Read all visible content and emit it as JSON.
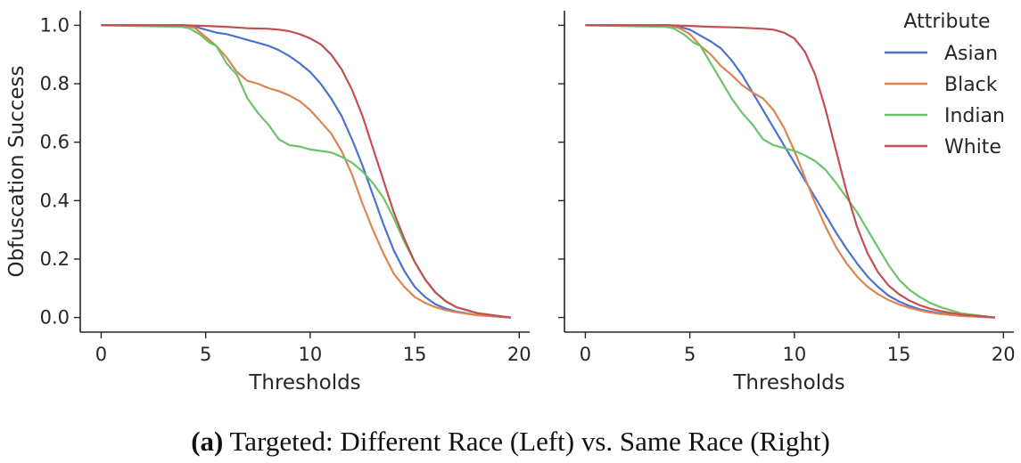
{
  "caption": {
    "label": "(a)",
    "text": " Targeted: Different Race (Left) vs. Same Race (Right)"
  },
  "legend": {
    "title": "Attribute",
    "placement": "top-right of right panel"
  },
  "chart_data": [
    {
      "type": "line",
      "panel": "left",
      "title": "",
      "xlabel": "Thresholds",
      "ylabel": "Obfuscation Success",
      "xlim": [
        -1,
        20.5
      ],
      "ylim": [
        -0.05,
        1.05
      ],
      "xticks": [
        0,
        5,
        10,
        15,
        20
      ],
      "yticks": [
        "0.0",
        "0.2",
        "0.4",
        "0.6",
        "0.8",
        "1.0"
      ],
      "grid": false,
      "series": [
        {
          "name": "Asian",
          "color": "#4c72d0",
          "x": [
            0,
            4,
            4.5,
            5,
            5.5,
            6,
            6.5,
            7,
            7.5,
            8,
            8.5,
            9,
            9.5,
            10,
            10.5,
            11,
            11.5,
            12,
            12.5,
            13,
            13.5,
            14,
            14.5,
            15,
            15.5,
            16,
            16.5,
            17,
            18,
            19,
            19.6
          ],
          "y": [
            1.0,
            1.0,
            0.995,
            0.985,
            0.975,
            0.97,
            0.96,
            0.95,
            0.94,
            0.93,
            0.915,
            0.895,
            0.87,
            0.84,
            0.8,
            0.75,
            0.69,
            0.61,
            0.52,
            0.42,
            0.32,
            0.23,
            0.16,
            0.105,
            0.07,
            0.045,
            0.03,
            0.02,
            0.008,
            0.003,
            0.0
          ]
        },
        {
          "name": "Black",
          "color": "#dd8452",
          "x": [
            0,
            4,
            4.5,
            5,
            5.5,
            6,
            6.5,
            7,
            7.5,
            8,
            8.5,
            9,
            9.5,
            10,
            10.5,
            11,
            11.5,
            12,
            12.5,
            13,
            13.5,
            14,
            14.5,
            15,
            15.5,
            16,
            16.5,
            17,
            18,
            19,
            19.6
          ],
          "y": [
            1.0,
            1.0,
            0.99,
            0.96,
            0.93,
            0.89,
            0.84,
            0.81,
            0.8,
            0.785,
            0.775,
            0.76,
            0.74,
            0.71,
            0.67,
            0.63,
            0.57,
            0.49,
            0.39,
            0.3,
            0.22,
            0.15,
            0.105,
            0.07,
            0.05,
            0.035,
            0.025,
            0.018,
            0.008,
            0.003,
            0.0
          ]
        },
        {
          "name": "Indian",
          "color": "#6ac46a",
          "x": [
            0,
            3.8,
            4.2,
            4.7,
            5.2,
            5.5,
            6,
            6.5,
            7,
            7.5,
            8,
            8.5,
            9,
            9.5,
            10,
            10.5,
            11,
            11.5,
            12,
            12.5,
            13,
            13.5,
            14,
            14.5,
            15,
            15.5,
            16,
            16.5,
            17,
            18,
            19,
            19.6
          ],
          "y": [
            1.0,
            0.995,
            0.99,
            0.97,
            0.94,
            0.93,
            0.87,
            0.83,
            0.75,
            0.7,
            0.66,
            0.61,
            0.59,
            0.585,
            0.575,
            0.57,
            0.565,
            0.55,
            0.53,
            0.5,
            0.46,
            0.41,
            0.34,
            0.26,
            0.19,
            0.13,
            0.085,
            0.055,
            0.035,
            0.015,
            0.005,
            0.0
          ]
        },
        {
          "name": "White",
          "color": "#c44e52",
          "x": [
            0,
            4,
            5,
            6,
            7,
            8,
            8.5,
            9,
            9.5,
            10,
            10.5,
            11,
            11.5,
            12,
            12.5,
            13,
            13.5,
            14,
            14.5,
            15,
            15.5,
            16,
            16.5,
            17,
            18,
            19,
            19.6
          ],
          "y": [
            1.0,
            1.0,
            0.998,
            0.995,
            0.99,
            0.988,
            0.985,
            0.98,
            0.97,
            0.955,
            0.935,
            0.9,
            0.85,
            0.78,
            0.69,
            0.58,
            0.47,
            0.36,
            0.27,
            0.19,
            0.13,
            0.085,
            0.055,
            0.035,
            0.015,
            0.005,
            0.0
          ]
        }
      ]
    },
    {
      "type": "line",
      "panel": "right",
      "title": "",
      "xlabel": "Thresholds",
      "ylabel": "",
      "xlim": [
        -1,
        20.5
      ],
      "ylim": [
        -0.05,
        1.05
      ],
      "xticks": [
        0,
        5,
        10,
        15,
        20
      ],
      "yticks": [],
      "grid": false,
      "series": [
        {
          "name": "Asian",
          "color": "#4c72d0",
          "x": [
            0,
            4,
            4.5,
            5,
            5.5,
            6,
            6.5,
            7,
            7.5,
            8,
            8.5,
            9,
            9.5,
            10,
            10.5,
            11,
            11.5,
            12,
            12.5,
            13,
            13.5,
            14,
            14.5,
            15,
            15.5,
            16,
            16.5,
            17,
            18,
            19,
            19.6
          ],
          "y": [
            1.0,
            1.0,
            0.995,
            0.985,
            0.965,
            0.945,
            0.92,
            0.88,
            0.83,
            0.77,
            0.71,
            0.65,
            0.59,
            0.53,
            0.47,
            0.41,
            0.35,
            0.29,
            0.235,
            0.185,
            0.14,
            0.105,
            0.075,
            0.055,
            0.04,
            0.028,
            0.02,
            0.014,
            0.006,
            0.002,
            0.0
          ]
        },
        {
          "name": "Black",
          "color": "#dd8452",
          "x": [
            0,
            4,
            4.5,
            5,
            5.5,
            6,
            6.5,
            7,
            7.5,
            8,
            8.5,
            9,
            9.5,
            10,
            10.5,
            11,
            11.5,
            12,
            12.5,
            13,
            13.5,
            14,
            14.5,
            15,
            15.5,
            16,
            16.5,
            17,
            18,
            19,
            19.6
          ],
          "y": [
            1.0,
            1.0,
            0.99,
            0.97,
            0.93,
            0.9,
            0.86,
            0.83,
            0.795,
            0.77,
            0.75,
            0.71,
            0.65,
            0.57,
            0.48,
            0.39,
            0.31,
            0.24,
            0.185,
            0.14,
            0.105,
            0.08,
            0.06,
            0.045,
            0.033,
            0.024,
            0.017,
            0.012,
            0.005,
            0.002,
            0.0
          ]
        },
        {
          "name": "Indian",
          "color": "#6ac46a",
          "x": [
            0,
            3.8,
            4.2,
            4.7,
            5.2,
            5.5,
            6,
            6.5,
            7,
            7.5,
            8,
            8.5,
            9,
            9.5,
            10,
            10.5,
            11,
            11.5,
            12,
            12.5,
            13,
            13.5,
            14,
            14.5,
            15,
            15.5,
            16,
            16.5,
            17,
            18,
            19,
            19.6
          ],
          "y": [
            1.0,
            0.995,
            0.99,
            0.97,
            0.94,
            0.93,
            0.87,
            0.81,
            0.75,
            0.7,
            0.66,
            0.61,
            0.59,
            0.58,
            0.57,
            0.555,
            0.535,
            0.505,
            0.46,
            0.41,
            0.36,
            0.3,
            0.24,
            0.18,
            0.13,
            0.095,
            0.07,
            0.05,
            0.035,
            0.014,
            0.005,
            0.0
          ]
        },
        {
          "name": "White",
          "color": "#c44e52",
          "x": [
            0,
            4,
            5,
            6,
            7,
            8,
            8.5,
            9,
            9.5,
            10,
            10.5,
            11,
            11.5,
            12,
            12.5,
            13,
            13.5,
            14,
            14.5,
            15,
            15.5,
            16,
            16.5,
            17,
            18,
            19,
            19.6
          ],
          "y": [
            1.0,
            1.0,
            0.998,
            0.995,
            0.993,
            0.99,
            0.988,
            0.985,
            0.975,
            0.955,
            0.91,
            0.83,
            0.71,
            0.57,
            0.43,
            0.31,
            0.22,
            0.155,
            0.11,
            0.08,
            0.058,
            0.042,
            0.03,
            0.022,
            0.01,
            0.004,
            0.0
          ]
        }
      ]
    }
  ]
}
